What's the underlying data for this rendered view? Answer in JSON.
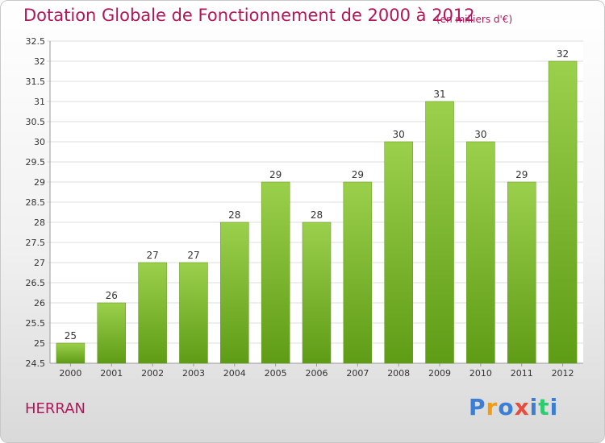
{
  "header": {
    "title": "Dotation Globale de Fonctionnement de 2000 à 2012",
    "unit": "(en milliers d'€)"
  },
  "footer": {
    "commune": "HERRAN",
    "logo": [
      "P",
      "r",
      "o",
      "x",
      "i",
      "t",
      "i"
    ],
    "logo_colors": [
      "#3a7fd5",
      "#f39c12",
      "#3a7fd5",
      "#e74c3c",
      "#3a7fd5",
      "#2ecc71",
      "#3a7fd5"
    ]
  },
  "chart_data": {
    "type": "bar",
    "categories": [
      "2000",
      "2001",
      "2002",
      "2003",
      "2004",
      "2005",
      "2006",
      "2007",
      "2008",
      "2009",
      "2010",
      "2011",
      "2012"
    ],
    "values": [
      25,
      26,
      27,
      27,
      28,
      29,
      28,
      29,
      30,
      31,
      30,
      29,
      32
    ],
    "ylim": [
      24.5,
      32.5
    ],
    "yticks": [
      24.5,
      25,
      25.5,
      26,
      26.5,
      27,
      27.5,
      28,
      28.5,
      29,
      29.5,
      30,
      30.5,
      31,
      31.5,
      32,
      32.5
    ],
    "ytick_labels": [
      "24.5",
      "25",
      "25.5",
      "26",
      "26.5",
      "27",
      "27.5",
      "28",
      "28.5",
      "29",
      "29.5",
      "30",
      "30.5",
      "31",
      "31.5",
      "32",
      "32.5"
    ],
    "bar_color_top": "#9bd04c",
    "bar_color_bottom": "#5f9c16",
    "grid": "horizontal"
  }
}
